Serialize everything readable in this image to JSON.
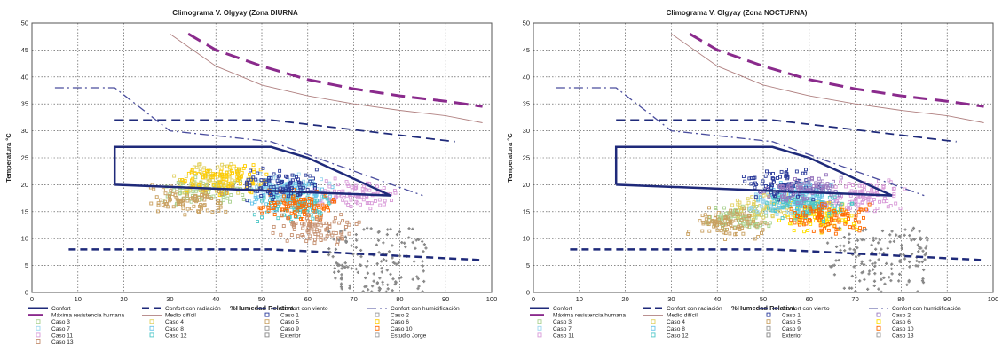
{
  "chart_data": [
    {
      "type": "line",
      "title": "Climograma V. Olgyay (Zona DIURNA",
      "xlabel": "%Humedad Relativa",
      "ylabel": "Temperatura °C",
      "xlim": [
        0,
        100
      ],
      "ylim": [
        0,
        50
      ],
      "xticks": [
        0,
        10,
        20,
        30,
        40,
        50,
        60,
        70,
        80,
        90,
        100
      ],
      "yticks": [
        0,
        5,
        10,
        15,
        20,
        25,
        30,
        35,
        40,
        45,
        50
      ],
      "grid": true,
      "legend_position": "bottom",
      "series": [
        {
          "name": "Confort",
          "color": "#1f2a7a",
          "x": [
            18,
            18,
            52,
            60,
            78,
            18,
            18
          ],
          "y": [
            20,
            27,
            27,
            25,
            18,
            20,
            20
          ]
        },
        {
          "name": "Confort con radiación",
          "color": "#1f2a7a",
          "x": [
            8,
            52,
            98
          ],
          "y": [
            8,
            8,
            6
          ]
        },
        {
          "name": "Confort con viento",
          "color": "#1f2a7a",
          "x": [
            18,
            52,
            92
          ],
          "y": [
            32,
            32,
            28
          ]
        },
        {
          "name": "Confort con humidificación",
          "color": "#4b4e9e",
          "x": [
            5,
            18,
            30,
            52,
            85
          ],
          "y": [
            38,
            38,
            30,
            28,
            18
          ]
        },
        {
          "name": "Máxima resistencia humana",
          "color": "#8a2a8c",
          "x": [
            34,
            40,
            50,
            60,
            70,
            80,
            90,
            98
          ],
          "y": [
            48,
            45,
            42,
            39.5,
            37.8,
            36.5,
            35.5,
            34.5
          ]
        },
        {
          "name": "Medio difícil",
          "color": "#b08080",
          "x": [
            30,
            40,
            50,
            60,
            70,
            80,
            90,
            98
          ],
          "y": [
            48,
            42,
            38.5,
            36.5,
            35,
            33.8,
            32.8,
            31.5
          ]
        }
      ],
      "point_clusters": [
        {
          "name": "Caso 3",
          "color": "#a8d08d",
          "x": 38,
          "y": 19
        },
        {
          "name": "Caso 4",
          "color": "#e0d060",
          "x": 40,
          "y": 21
        },
        {
          "name": "Caso 6",
          "color": "#ffcc00",
          "x": 42,
          "y": 21
        },
        {
          "name": "Caso 7",
          "color": "#9dd7ef",
          "x": 55,
          "y": 19
        },
        {
          "name": "Caso 8",
          "color": "#67c4e8",
          "x": 57,
          "y": 18
        },
        {
          "name": "Caso 11",
          "color": "#d89ad8",
          "x": 70,
          "y": 18
        },
        {
          "name": "Caso 12",
          "color": "#4dc6c6",
          "x": 58,
          "y": 16
        },
        {
          "name": "Caso 10",
          "color": "#ff6a00",
          "x": 58,
          "y": 16
        },
        {
          "name": "Caso 5",
          "color": "#c9a060",
          "x": 34,
          "y": 17
        },
        {
          "name": "Caso 1",
          "color": "#2a3a9a",
          "x": 54,
          "y": 20
        },
        {
          "name": "Caso 13",
          "color": "#c59070",
          "x": 62,
          "y": 12
        },
        {
          "name": "Exterior",
          "color": "#888888",
          "x": 75,
          "y": 6
        }
      ]
    },
    {
      "type": "line",
      "title": "Climograma V. Olgyay (Zona NOCTURNA)",
      "xlabel": "%Humedad Relativa",
      "ylabel": "Temperatura °C",
      "xlim": [
        0,
        100
      ],
      "ylim": [
        0,
        50
      ],
      "xticks": [
        0,
        10,
        20,
        30,
        40,
        50,
        60,
        70,
        80,
        90,
        100
      ],
      "yticks": [
        0,
        5,
        10,
        15,
        20,
        25,
        30,
        35,
        40,
        45,
        50
      ],
      "grid": true,
      "legend_position": "bottom",
      "series": [
        {
          "name": "Confort",
          "color": "#1f2a7a",
          "x": [
            18,
            18,
            52,
            60,
            78,
            18,
            18
          ],
          "y": [
            20,
            27,
            27,
            25,
            18,
            20,
            20
          ]
        },
        {
          "name": "Confort con radiación",
          "color": "#1f2a7a",
          "x": [
            8,
            52,
            98
          ],
          "y": [
            8,
            8,
            6
          ]
        },
        {
          "name": "Confort con viento",
          "color": "#1f2a7a",
          "x": [
            18,
            52,
            92
          ],
          "y": [
            32,
            32,
            28
          ]
        },
        {
          "name": "Confort con humidificación",
          "color": "#4b4e9e",
          "x": [
            5,
            18,
            30,
            52,
            85
          ],
          "y": [
            38,
            38,
            30,
            28,
            18
          ]
        },
        {
          "name": "Máxima resistencia humana",
          "color": "#8a2a8c",
          "x": [
            34,
            40,
            50,
            60,
            70,
            80,
            90,
            98
          ],
          "y": [
            48,
            45,
            42,
            39.5,
            37.8,
            36.5,
            35.5,
            34.5
          ]
        },
        {
          "name": "Medio difícil",
          "color": "#b08080",
          "x": [
            30,
            40,
            50,
            60,
            70,
            80,
            90,
            98
          ],
          "y": [
            48,
            42,
            38.5,
            36.5,
            35,
            33.8,
            32.8,
            31.5
          ]
        }
      ],
      "point_clusters": [
        {
          "name": "Caso 3",
          "color": "#a8d08d",
          "x": 45,
          "y": 14
        },
        {
          "name": "Caso 4",
          "color": "#e0d060",
          "x": 52,
          "y": 16
        },
        {
          "name": "Caso 6",
          "color": "#ffe000",
          "x": 62,
          "y": 14
        },
        {
          "name": "Caso 7",
          "color": "#9dd7ef",
          "x": 56,
          "y": 17
        },
        {
          "name": "Caso 8",
          "color": "#67c4e8",
          "x": 58,
          "y": 18
        },
        {
          "name": "Caso 11",
          "color": "#d89ad8",
          "x": 72,
          "y": 18
        },
        {
          "name": "Caso 12",
          "color": "#4dc6c6",
          "x": 60,
          "y": 16
        },
        {
          "name": "Caso 10",
          "color": "#ff6a00",
          "x": 64,
          "y": 14
        },
        {
          "name": "Caso 5",
          "color": "#c9a060",
          "x": 42,
          "y": 13
        },
        {
          "name": "Caso 1",
          "color": "#2a3a9a",
          "x": 55,
          "y": 20
        },
        {
          "name": "Caso 2",
          "color": "#9a7ac0",
          "x": 58,
          "y": 19
        },
        {
          "name": "Exterior",
          "color": "#888888",
          "x": 75,
          "y": 6
        }
      ]
    }
  ],
  "legends": [
    {
      "rows": [
        [
          "Confort",
          "Confort con radiación",
          "Confort con viento",
          "Confort con humidificación"
        ],
        [
          "Máxima resistencia humana",
          "Medio difícil",
          "Caso 1",
          "Caso 2"
        ],
        [
          "Caso 3",
          "Caso 4",
          "Caso 5",
          "Caso 6"
        ],
        [
          "Caso 7",
          "Caso 8",
          "Caso 9",
          "Caso 10"
        ],
        [
          "Caso 11",
          "Caso 12",
          "Exterior",
          "Estudio Jorge"
        ],
        [
          "Caso 13",
          "",
          "",
          ""
        ]
      ]
    },
    {
      "rows": [
        [
          "Confort",
          "Confort con radiación",
          "Confort con viento",
          "Confort con humidificación"
        ],
        [
          "Máxima resistencia humana",
          "Medio difícil",
          "Caso 1",
          "Caso 2"
        ],
        [
          "Caso 3",
          "Caso 4",
          "Caso 5",
          "Caso 6"
        ],
        [
          "Caso 7",
          "Caso 8",
          "Caso 9",
          "Caso 10"
        ],
        [
          "Caso 11",
          "Caso 12",
          "Exterior",
          "Caso 13"
        ]
      ]
    }
  ]
}
